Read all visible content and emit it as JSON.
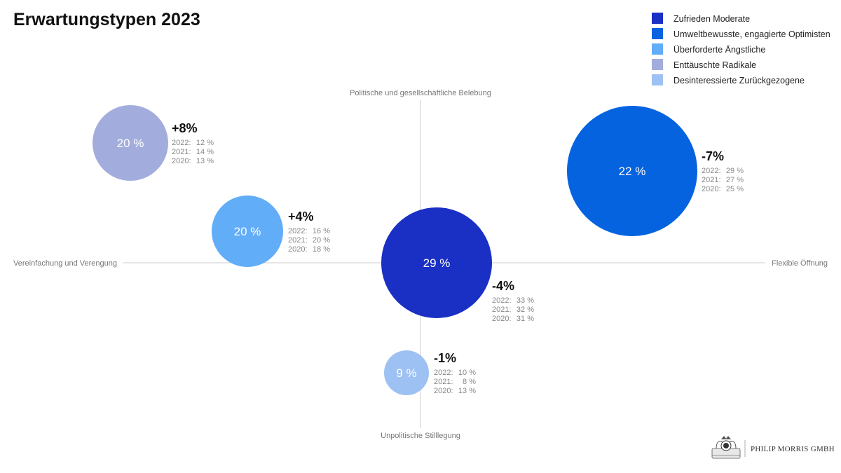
{
  "chart_data": {
    "type": "bubble",
    "title": "Erwartungstypen 2023",
    "axes": {
      "top": "Politische und gesellschaftliche Belebung",
      "bottom": "Unpolitische Stilllegung",
      "left": "Vereinfachung und Verengung",
      "right": "Flexible Öffnung"
    },
    "legend": [
      {
        "label": "Zufrieden Moderate",
        "color": "#1a2fc4"
      },
      {
        "label": "Umweltbewusste, engagierte Optimisten",
        "color": "#0563e0"
      },
      {
        "label": "Überforderte Ängstliche",
        "color": "#62adf8"
      },
      {
        "label": "Enttäuschte Radikale",
        "color": "#a3addd"
      },
      {
        "label": "Desinteressierte Zurückgezogene",
        "color": "#9ec1f3"
      }
    ],
    "series": [
      {
        "name": "Zufrieden Moderate",
        "value": 29,
        "label": "29 %",
        "change": "-4%",
        "history": [
          {
            "year": "2022",
            "value": "33 %"
          },
          {
            "year": "2021",
            "value": "32 %"
          },
          {
            "year": "2020",
            "value": "31 %"
          }
        ],
        "color": "#1a2fc4"
      },
      {
        "name": "Umweltbewusste, engagierte Optimisten",
        "value": 22,
        "label": "22 %",
        "change": "-7%",
        "history": [
          {
            "year": "2022",
            "value": "29 %"
          },
          {
            "year": "2021",
            "value": "27 %"
          },
          {
            "year": "2020",
            "value": "25 %"
          }
        ],
        "color": "#0563e0"
      },
      {
        "name": "Überforderte Ängstliche",
        "value": 20,
        "label": "20 %",
        "change": "+4%",
        "history": [
          {
            "year": "2022",
            "value": "16 %"
          },
          {
            "year": "2021",
            "value": "20 %"
          },
          {
            "year": "2020",
            "value": "18 %"
          }
        ],
        "color": "#62adf8"
      },
      {
        "name": "Enttäuschte Radikale",
        "value": 20,
        "label": "20 %",
        "change": "+8%",
        "history": [
          {
            "year": "2022",
            "value": "12 %"
          },
          {
            "year": "2021",
            "value": "14 %"
          },
          {
            "year": "2020",
            "value": "13 %"
          }
        ],
        "color": "#a3addd"
      },
      {
        "name": "Desinteressierte Zurückgezogene",
        "value": 9,
        "label": "9 %",
        "change": "-1%",
        "history": [
          {
            "year": "2022",
            "value": "10 %"
          },
          {
            "year": "2021",
            "value": "8 %"
          },
          {
            "year": "2020",
            "value": "13 %"
          }
        ],
        "color": "#9ec1f3"
      }
    ]
  },
  "footer": {
    "company": "PHILIP MORRIS GMBH"
  }
}
